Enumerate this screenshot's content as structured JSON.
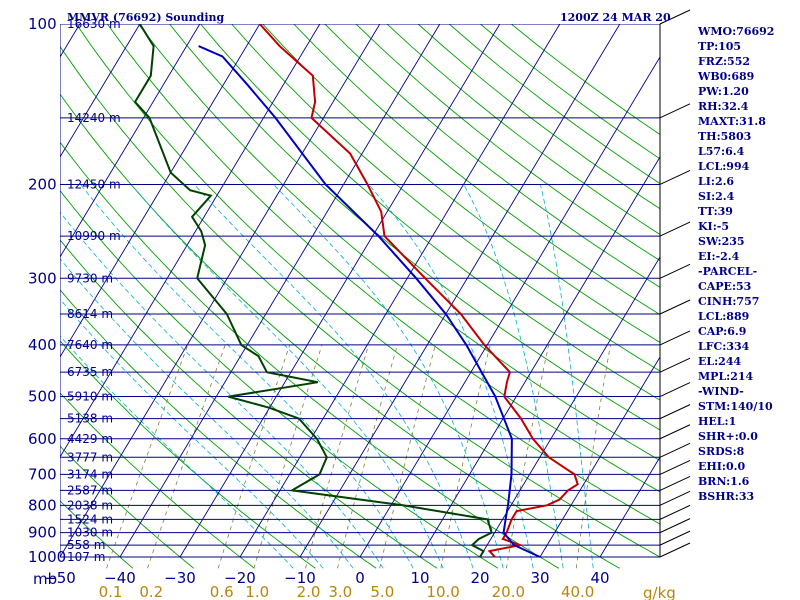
{
  "chart_data": {
    "type": "line",
    "title": "MMVR (76692) Sounding",
    "time_label": "1200Z 24 MAR 20",
    "pressure_axis": {
      "unit_label": "mb",
      "ticks": [
        100,
        200,
        300,
        400,
        500,
        600,
        700,
        800,
        900,
        1000
      ],
      "ylim": [
        1000,
        100
      ],
      "scale": "log"
    },
    "temperature_axis": {
      "ticks": [
        -50,
        -40,
        -30,
        -20,
        -10,
        0,
        10,
        20,
        30,
        40
      ],
      "xlim": [
        -50,
        50
      ]
    },
    "mixing_ratio_axis": {
      "unit_label": "g/kg",
      "ticks": [
        "0.1",
        "0.2",
        "0.6",
        "1.0",
        "2.0",
        "3.0",
        "5.0",
        "10.0",
        "20.0",
        "40.0"
      ]
    },
    "height_labels": [
      {
        "p": 100,
        "label": "16630 m"
      },
      {
        "p": 150,
        "label": "14240 m"
      },
      {
        "p": 200,
        "label": "12450 m"
      },
      {
        "p": 250,
        "label": "10990 m"
      },
      {
        "p": 300,
        "label": "9730 m"
      },
      {
        "p": 350,
        "label": "8614 m"
      },
      {
        "p": 400,
        "label": "7640 m"
      },
      {
        "p": 450,
        "label": "6735 m"
      },
      {
        "p": 500,
        "label": "5910 m"
      },
      {
        "p": 550,
        "label": "5138 m"
      },
      {
        "p": 600,
        "label": "4429 m"
      },
      {
        "p": 650,
        "label": "3777 m"
      },
      {
        "p": 700,
        "label": "3174 m"
      },
      {
        "p": 750,
        "label": "2587 m"
      },
      {
        "p": 800,
        "label": "2038 m"
      },
      {
        "p": 850,
        "label": "1524 m"
      },
      {
        "p": 900,
        "label": "1030 m"
      },
      {
        "p": 950,
        "label": "558 m"
      },
      {
        "p": 1000,
        "label": "107 m"
      }
    ],
    "series": [
      {
        "kind": "temperature",
        "color": "#c00000",
        "points": [
          [
            1000,
            22.5
          ],
          [
            975,
            21.0
          ],
          [
            950,
            25.5
          ],
          [
            925,
            22.0
          ],
          [
            900,
            22.0
          ],
          [
            850,
            21.5
          ],
          [
            820,
            21.5
          ],
          [
            800,
            26.0
          ],
          [
            780,
            27.5
          ],
          [
            750,
            28.0
          ],
          [
            730,
            29.0
          ],
          [
            700,
            27.5
          ],
          [
            650,
            21.5
          ],
          [
            600,
            17.0
          ],
          [
            550,
            13.0
          ],
          [
            500,
            8.0
          ],
          [
            470,
            7.0
          ],
          [
            450,
            6.5
          ],
          [
            400,
            -0.5
          ],
          [
            350,
            -7.5
          ],
          [
            300,
            -17.0
          ],
          [
            250,
            -28.0
          ],
          [
            225,
            -31.0
          ],
          [
            200,
            -36.0
          ],
          [
            175,
            -42.0
          ],
          [
            150,
            -52.0
          ],
          [
            140,
            -53.0
          ],
          [
            125,
            -56.0
          ],
          [
            110,
            -64.5
          ],
          [
            100,
            -70.0
          ]
        ]
      },
      {
        "kind": "dewpoint",
        "color": "#004000",
        "points": [
          [
            1000,
            20.0
          ],
          [
            975,
            20.0
          ],
          [
            950,
            17.5
          ],
          [
            925,
            18.0
          ],
          [
            900,
            19.5
          ],
          [
            850,
            17.5
          ],
          [
            800,
            2.0
          ],
          [
            750,
            -18.0
          ],
          [
            700,
            -15.0
          ],
          [
            650,
            -15.5
          ],
          [
            600,
            -19.0
          ],
          [
            550,
            -24.0
          ],
          [
            525,
            -30.0
          ],
          [
            500,
            -38.0
          ],
          [
            470,
            -24.5
          ],
          [
            450,
            -34.0
          ],
          [
            420,
            -37.0
          ],
          [
            400,
            -41.0
          ],
          [
            350,
            -46.5
          ],
          [
            300,
            -55.0
          ],
          [
            260,
            -57.0
          ],
          [
            245,
            -59.0
          ],
          [
            230,
            -62.0
          ],
          [
            210,
            -61.0
          ],
          [
            205,
            -65.0
          ],
          [
            190,
            -70.0
          ],
          [
            150,
            -79.0
          ],
          [
            140,
            -83.0
          ],
          [
            125,
            -83.0
          ],
          [
            110,
            -85.5
          ],
          [
            100,
            -90.0
          ]
        ]
      },
      {
        "kind": "parcel",
        "color": "#0000c0",
        "points": [
          [
            1000,
            30.0
          ],
          [
            950,
            24.5
          ],
          [
            900,
            21.5
          ],
          [
            850,
            20.5
          ],
          [
            800,
            19.5
          ],
          [
            700,
            17.0
          ],
          [
            600,
            13.5
          ],
          [
            500,
            6.5
          ],
          [
            400,
            -3.5
          ],
          [
            350,
            -10.0
          ],
          [
            300,
            -18.5
          ],
          [
            250,
            -29.0
          ],
          [
            200,
            -43.0
          ],
          [
            150,
            -58.0
          ],
          [
            130,
            -66.0
          ],
          [
            115,
            -73.0
          ],
          [
            110,
            -78.0
          ]
        ]
      }
    ],
    "wind_barbs": true,
    "grid": true
  },
  "indices": [
    "WMO:76692",
    "TP:105",
    "FRZ:552",
    "WB0:689",
    "PW:1.20",
    "RH:32.4",
    "MAXT:31.8",
    "TH:5803",
    "L57:6.4",
    "LCL:994",
    "LI:2.6",
    "SI:2.4",
    "TT:39",
    "KI:-5",
    "SW:235",
    "EI:-2.4",
    "-PARCEL-",
    "CAPE:53",
    "CINH:757",
    "LCL:889",
    "CAP:6.9",
    "LFC:334",
    "EL:244",
    "MPL:214",
    "-WIND-",
    "STM:140/10",
    "HEL:1",
    "SHR+:0.0",
    "SRDS:8",
    "EHI:0.0",
    "BRN:1.6",
    "BSHR:33"
  ],
  "colors": {
    "isobar": "#00008b",
    "isotherm": "#00008b",
    "dry_adiabat": "#00a000",
    "moist_adiabat": "#00b0d0",
    "mixing_ratio": "#808040"
  }
}
